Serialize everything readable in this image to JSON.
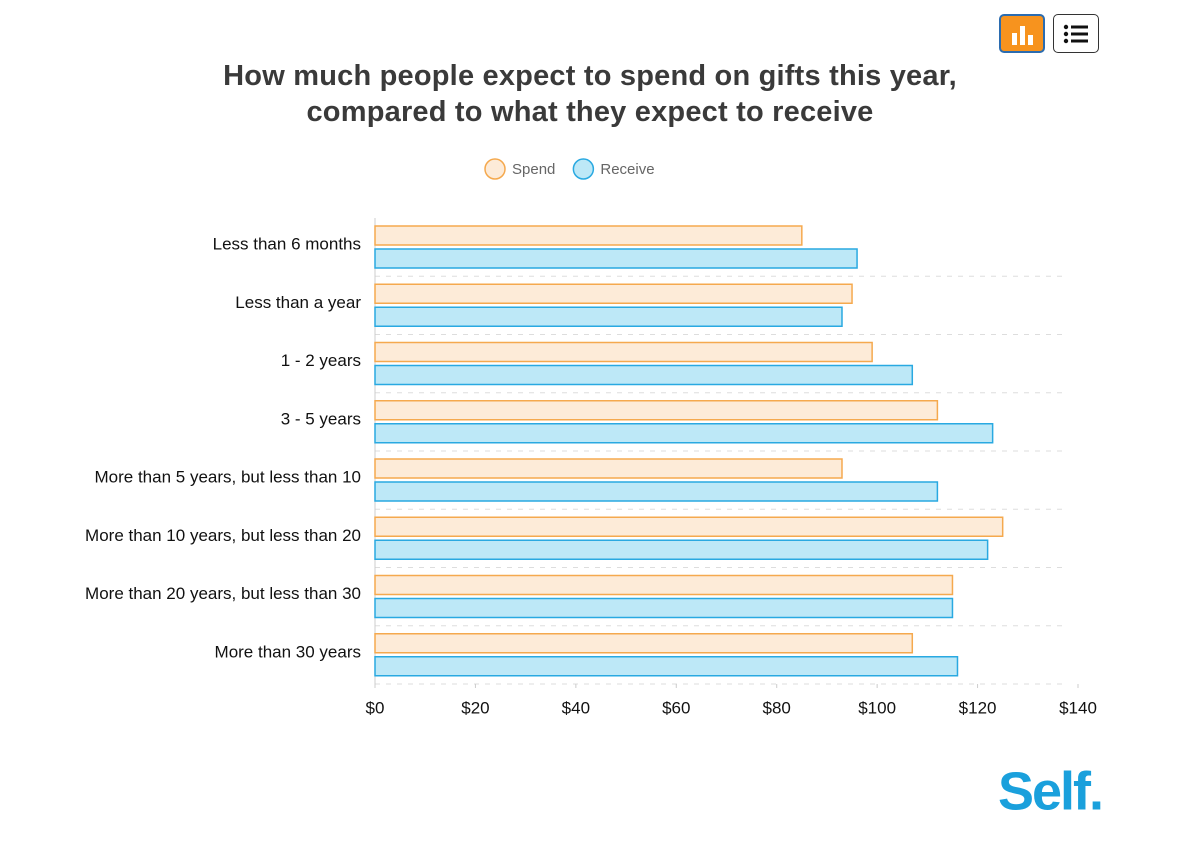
{
  "chart_data": {
    "type": "hbar",
    "title": "How much people expect to spend on gifts this year, compared to what they expect to receive",
    "categories": [
      "Less than 6 months",
      "Less than a year",
      "1 - 2 years",
      "3 - 5 years",
      "More than 5 years, but less than 10",
      "More than 10 years, but less than 20",
      "More than 20 years, but less than 30",
      "More than 30 years"
    ],
    "series": [
      {
        "name": "Spend",
        "color": "#f5a94e",
        "fill": "#fdebd8",
        "values": [
          85,
          95,
          99,
          112,
          93,
          125,
          115,
          107
        ]
      },
      {
        "name": "Receive",
        "color": "#29a9e1",
        "fill": "#bde8f7",
        "values": [
          96,
          93,
          107,
          123,
          112,
          122,
          115,
          116
        ]
      }
    ],
    "xlim": [
      0,
      140
    ],
    "xticks": [
      {
        "value": 0,
        "label": "$0"
      },
      {
        "value": 20,
        "label": "$20"
      },
      {
        "value": 40,
        "label": "$40"
      },
      {
        "value": 60,
        "label": "$60"
      },
      {
        "value": 80,
        "label": "$80"
      },
      {
        "value": 100,
        "label": "$100"
      },
      {
        "value": 120,
        "label": "$120"
      },
      {
        "value": 140,
        "label": "$140"
      }
    ],
    "legend": "top",
    "grid": true
  },
  "brand": "Self."
}
